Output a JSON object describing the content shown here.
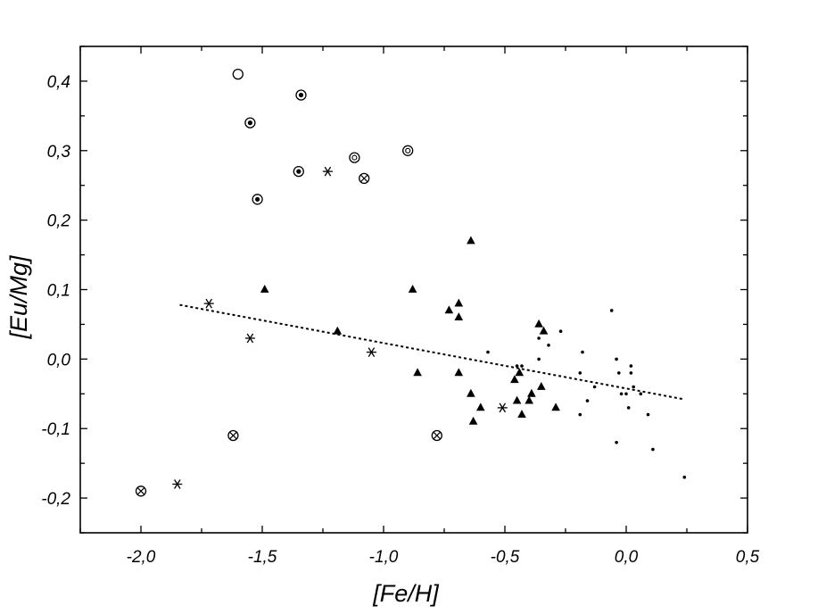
{
  "chart_data": {
    "type": "scatter",
    "title": "",
    "xlabel": "[Fe/H]",
    "ylabel": "[Eu/Mg]",
    "xlim": [
      -2.25,
      0.5
    ],
    "ylim": [
      -0.25,
      0.45
    ],
    "x_ticks": [
      -2.0,
      -1.5,
      -1.0,
      -0.5,
      0.0,
      0.5
    ],
    "x_tick_labels": [
      "-2,0",
      "-1,5",
      "-1,0",
      "-0,5",
      "0,0",
      "0,5"
    ],
    "y_ticks": [
      -0.2,
      -0.1,
      0.0,
      0.1,
      0.2,
      0.3,
      0.4
    ],
    "y_tick_labels": [
      "-0,2",
      "-0,1",
      "0,0",
      "0,1",
      "0,2",
      "0,3",
      "0,4"
    ],
    "grid": false,
    "legend": "none",
    "series": [
      {
        "marker": "open-circle",
        "points": [
          [
            -1.6,
            0.41
          ]
        ]
      },
      {
        "marker": "circle-dot",
        "points": [
          [
            -1.55,
            0.34
          ],
          [
            -1.34,
            0.38
          ],
          [
            -1.35,
            0.27
          ],
          [
            -1.52,
            0.23
          ]
        ]
      },
      {
        "marker": "double-circle",
        "points": [
          [
            -1.12,
            0.29
          ],
          [
            -0.9,
            0.3
          ]
        ]
      },
      {
        "marker": "circled-x",
        "points": [
          [
            -1.08,
            0.26
          ],
          [
            -1.62,
            -0.11
          ],
          [
            -0.78,
            -0.11
          ],
          [
            -2.0,
            -0.19
          ]
        ]
      },
      {
        "marker": "asterisk",
        "points": [
          [
            -1.23,
            0.27
          ],
          [
            -1.72,
            0.08
          ],
          [
            -1.55,
            0.03
          ],
          [
            -1.05,
            0.01
          ],
          [
            -0.51,
            -0.07
          ],
          [
            -1.85,
            -0.18
          ]
        ]
      },
      {
        "marker": "filled-triangle",
        "points": [
          [
            -1.49,
            0.1
          ],
          [
            -0.88,
            0.1
          ],
          [
            -1.19,
            0.04
          ],
          [
            -0.86,
            -0.02
          ],
          [
            -0.64,
            0.17
          ],
          [
            -0.73,
            0.07
          ],
          [
            -0.69,
            0.08
          ],
          [
            -0.69,
            0.06
          ],
          [
            -0.69,
            -0.02
          ],
          [
            -0.64,
            -0.05
          ],
          [
            -0.63,
            -0.09
          ],
          [
            -0.6,
            -0.07
          ],
          [
            -0.46,
            -0.03
          ],
          [
            -0.45,
            -0.06
          ],
          [
            -0.44,
            -0.02
          ],
          [
            -0.43,
            -0.08
          ],
          [
            -0.4,
            -0.06
          ],
          [
            -0.39,
            -0.05
          ],
          [
            -0.36,
            0.05
          ],
          [
            -0.34,
            0.04
          ],
          [
            -0.35,
            -0.04
          ],
          [
            -0.29,
            -0.07
          ]
        ]
      },
      {
        "marker": "small-dot",
        "points": [
          [
            -0.57,
            0.01
          ],
          [
            -0.45,
            -0.01
          ],
          [
            -0.43,
            -0.01
          ],
          [
            -0.36,
            0.03
          ],
          [
            -0.36,
            0.0
          ],
          [
            -0.32,
            0.02
          ],
          [
            -0.27,
            0.04
          ],
          [
            -0.18,
            0.01
          ],
          [
            -0.19,
            -0.02
          ],
          [
            -0.19,
            -0.08
          ],
          [
            -0.16,
            -0.06
          ],
          [
            -0.13,
            -0.04
          ],
          [
            -0.06,
            0.07
          ],
          [
            -0.04,
            0.0
          ],
          [
            -0.03,
            -0.02
          ],
          [
            -0.04,
            -0.12
          ],
          [
            -0.02,
            -0.05
          ],
          [
            0.0,
            -0.05
          ],
          [
            0.02,
            -0.01
          ],
          [
            0.02,
            -0.02
          ],
          [
            0.03,
            -0.04
          ],
          [
            0.01,
            -0.07
          ],
          [
            0.06,
            -0.05
          ],
          [
            0.09,
            -0.08
          ],
          [
            0.11,
            -0.13
          ],
          [
            0.24,
            -0.17
          ]
        ]
      }
    ],
    "fit_line": {
      "style": "dotted",
      "points": [
        [
          -1.84,
          0.078
        ],
        [
          0.24,
          -0.058
        ]
      ]
    }
  }
}
